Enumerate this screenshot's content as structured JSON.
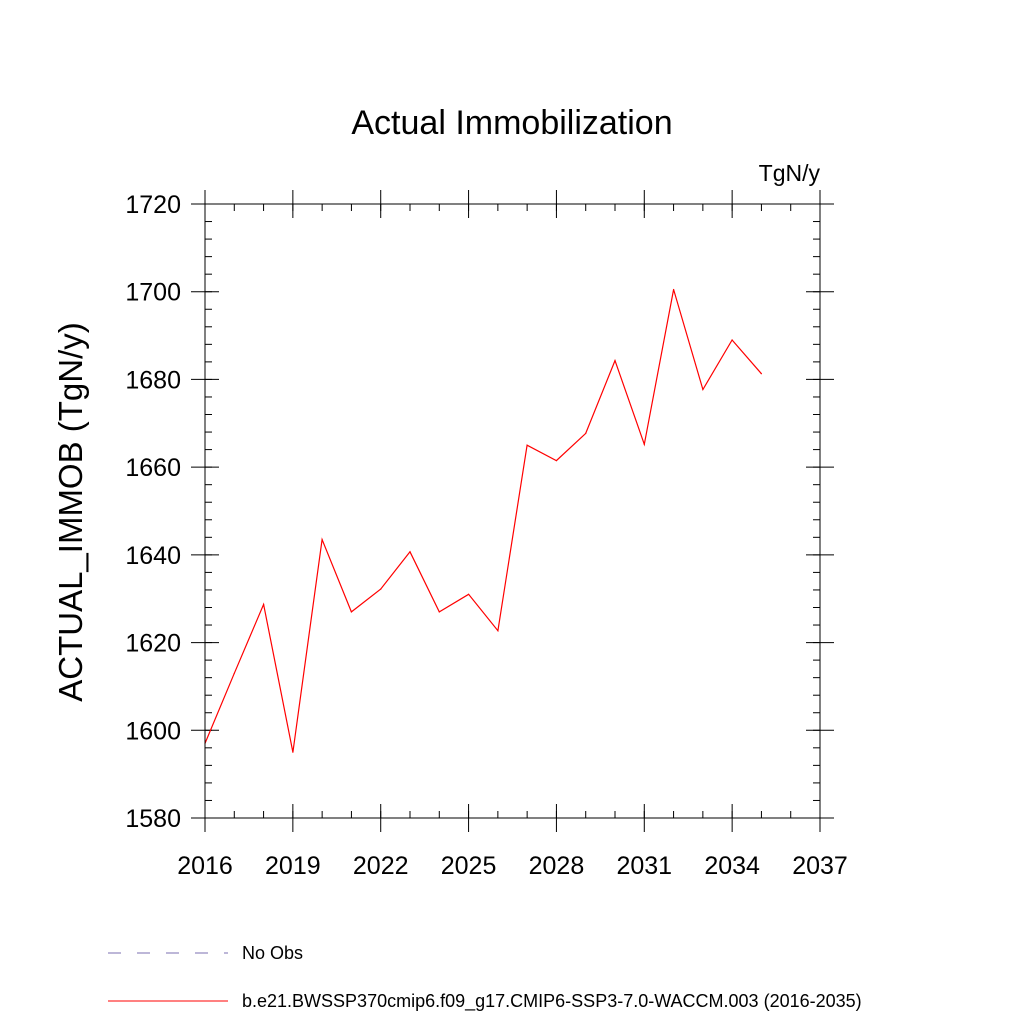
{
  "chart_data": {
    "type": "line",
    "title": "Actual Immobilization",
    "units": "TgN/y",
    "xlabel": "",
    "ylabel": "ACTUAL_IMMOB  (TgN/y)",
    "xlim": [
      2016,
      2037
    ],
    "ylim": [
      1580,
      1720
    ],
    "x_ticks": [
      "2016",
      "2019",
      "2022",
      "2025",
      "2028",
      "2031",
      "2034",
      "2037"
    ],
    "y_ticks": [
      "1580",
      "1600",
      "1620",
      "1640",
      "1660",
      "1680",
      "1700",
      "1720"
    ],
    "x_minor_step": 1,
    "y_minor_step": 4,
    "grid": false,
    "series": [
      {
        "name": "b.e21.BWSSP370cmip6.f09_g17.CMIP6-SSP3-7.0-WACCM.003 (2016-2035)",
        "color": "#ff0000",
        "style": "solid",
        "x": [
          2016,
          2017,
          2018,
          2019,
          2020,
          2021,
          2022,
          2023,
          2024,
          2025,
          2026,
          2027,
          2028,
          2029,
          2030,
          2031,
          2032,
          2033,
          2034,
          2035
        ],
        "values": [
          1597,
          1613,
          1628.7,
          1595,
          1643.5,
          1627,
          1632.2,
          1640.7,
          1627,
          1631,
          1622.7,
          1665,
          1661.5,
          1667.7,
          1684.3,
          1665.2,
          1700.5,
          1677.7,
          1689,
          1681.3
        ]
      }
    ],
    "legend": {
      "placement": "bottom-left",
      "entries": [
        {
          "label": "No Obs",
          "color": "#7b6fb2",
          "style": "dashed"
        },
        {
          "label": "b.e21.BWSSP370cmip6.f09_g17.CMIP6-SSP3-7.0-WACCM.003 (2016-2035)",
          "color": "#ff0000",
          "style": "solid"
        }
      ]
    }
  }
}
